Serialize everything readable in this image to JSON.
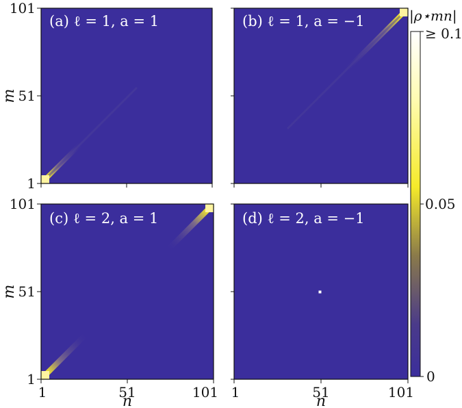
{
  "chart_data": {
    "type": "heatmap",
    "colormap": "plasma-like (dark blue to yellow to white)",
    "colors": {
      "low": "#3b2e9c",
      "mid": "#e6d74a",
      "high": "#ffffff"
    },
    "n_range": [
      1,
      101
    ],
    "m_range": [
      1,
      101
    ],
    "xlabel": "n",
    "ylabel": "m",
    "x_ticks": [
      "1",
      "51",
      "101"
    ],
    "y_ticks": [
      "1",
      "51",
      "101"
    ],
    "colorbar": {
      "title": "|ρ⋆mn|",
      "range": [
        0,
        0.1
      ],
      "tick_labels": [
        "0",
        "0.05",
        "≥ 0.1"
      ]
    },
    "panels": [
      {
        "label": "(a) ℓ = 1, a = 1",
        "feature": "diagonal concentration near m = n = 1",
        "peak_center": [
          1,
          1
        ],
        "peak_value": 0.1
      },
      {
        "label": "(b) ℓ = 1, a = −1",
        "feature": "diagonal concentration near m = n = 101",
        "peak_center": [
          101,
          101
        ],
        "peak_value": 0.1
      },
      {
        "label": "(c) ℓ = 2, a = 1",
        "feature": "diagonal concentration at both corners m = n = 1 and m = n = 101",
        "peak_center": [
          [
            1,
            1
          ],
          [
            101,
            101
          ]
        ],
        "peak_value": 0.1
      },
      {
        "label": "(d) ℓ = 2, a = −1",
        "feature": "single point at m = n = 51",
        "peak_center": [
          51,
          51
        ],
        "peak_value": 0.1
      }
    ]
  }
}
